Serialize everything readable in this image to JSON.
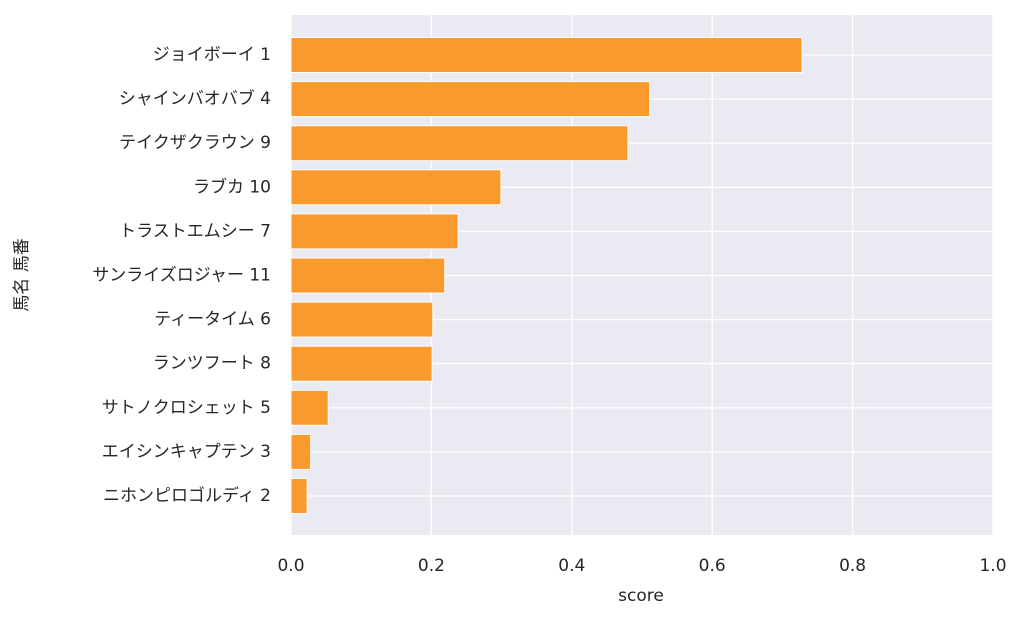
{
  "chart_data": {
    "type": "barh",
    "categories": [
      "ジョイボーイ 1",
      "シャインバオバブ 4",
      "テイクザクラウン 9",
      "ラブカ 10",
      "トラストエムシー 7",
      "サンライズロジャー 11",
      "ティータイム 6",
      "ランツフート 8",
      "サトノクロシェット 5",
      "エイシンキャプテン 3",
      "ニホンピロゴルディ 2"
    ],
    "values": [
      0.728,
      0.511,
      0.48,
      0.299,
      0.238,
      0.219,
      0.202,
      0.201,
      0.053,
      0.028,
      0.023
    ],
    "color": "#f89a2c",
    "xlim": [
      0,
      1
    ],
    "xticks": [
      {
        "value": 0,
        "label": "0.0"
      },
      {
        "value": 0.2,
        "label": "0.2"
      },
      {
        "value": 0.4,
        "label": "0.4"
      },
      {
        "value": 0.6,
        "label": "0.6"
      },
      {
        "value": 0.8,
        "label": "0.8"
      },
      {
        "value": 1,
        "label": "1.0"
      }
    ],
    "xlabel": "score",
    "ylabel": "馬名 馬番",
    "grid": true
  }
}
